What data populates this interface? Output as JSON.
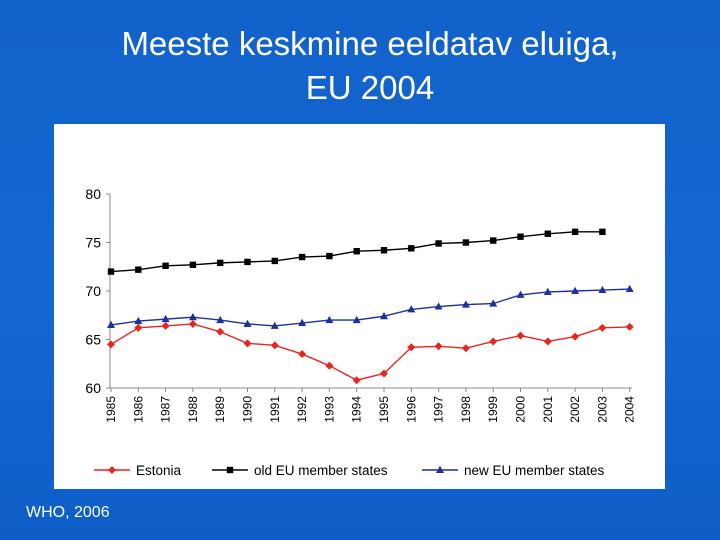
{
  "slide": {
    "title_line1": "Meeste keskmine eeldatav eluiga,",
    "title_line2": "EU 2004",
    "source": "WHO, 2006"
  },
  "chart_data": {
    "type": "line",
    "title": "",
    "xlabel": "",
    "ylabel": "",
    "x": [
      "1985",
      "1986",
      "1987",
      "1988",
      "1989",
      "1990",
      "1991",
      "1992",
      "1993",
      "1994",
      "1995",
      "1996",
      "1997",
      "1998",
      "1999",
      "2000",
      "2001",
      "2002",
      "2003",
      "2004"
    ],
    "ylim": [
      60,
      80
    ],
    "yticks": [
      60,
      65,
      70,
      75,
      80
    ],
    "grid": false,
    "legend_position": "bottom",
    "series": [
      {
        "name": "Estonia",
        "color": "#e8251f",
        "marker": "diamond",
        "values": [
          64.5,
          66.2,
          66.4,
          66.6,
          65.8,
          64.6,
          64.4,
          63.5,
          62.3,
          60.8,
          61.5,
          64.2,
          64.3,
          64.1,
          64.8,
          65.4,
          64.8,
          65.3,
          66.2,
          66.3
        ]
      },
      {
        "name": "old EU member states",
        "color": "#000000",
        "marker": "square",
        "values": [
          72.0,
          72.2,
          72.6,
          72.7,
          72.9,
          73.0,
          73.1,
          73.5,
          73.6,
          74.1,
          74.2,
          74.4,
          74.9,
          75.0,
          75.2,
          75.6,
          75.9,
          76.1,
          76.1,
          null
        ]
      },
      {
        "name": "new EU member states",
        "color": "#1f2f9e",
        "marker": "triangle",
        "values": [
          66.5,
          66.9,
          67.1,
          67.3,
          67.0,
          66.6,
          66.4,
          66.7,
          67.0,
          67.0,
          67.4,
          68.1,
          68.4,
          68.6,
          68.7,
          69.6,
          69.9,
          70.0,
          70.1,
          70.2
        ]
      }
    ]
  }
}
